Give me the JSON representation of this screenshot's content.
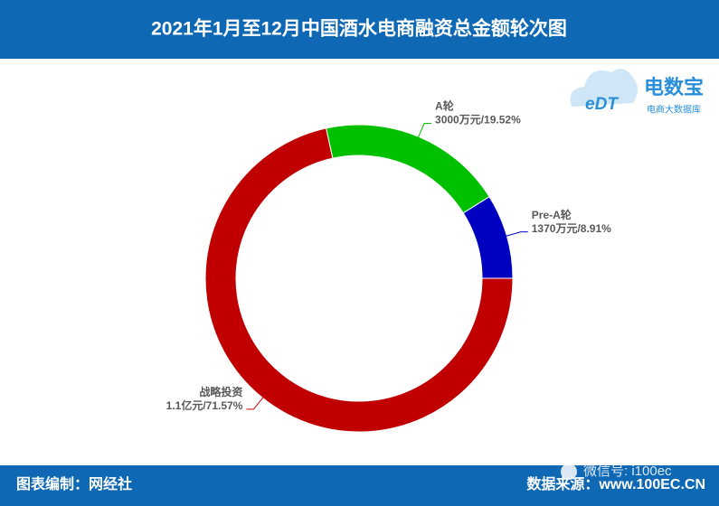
{
  "chart_data": {
    "type": "pie",
    "title": "2021年1月至12月中国酒水电商融资总金额轮次图",
    "categories": [
      "战略投资",
      "A轮",
      "Pre-A轮"
    ],
    "values": [
      71.57,
      19.52,
      8.91
    ],
    "value_labels": [
      "1.1亿元/71.57%",
      "3000万元/19.52%",
      "1370万元/8.91%"
    ],
    "colors": [
      "#c00000",
      "#00c000",
      "#0000c0"
    ],
    "donut": true
  },
  "logo": {
    "badge": "eDT",
    "name": "电数宝",
    "tagline": "电商大数据库"
  },
  "footer": {
    "left": "图表编制：网经社",
    "right": "数据来源：www.100EC.CN"
  },
  "watermark": "微信号: i100ec"
}
